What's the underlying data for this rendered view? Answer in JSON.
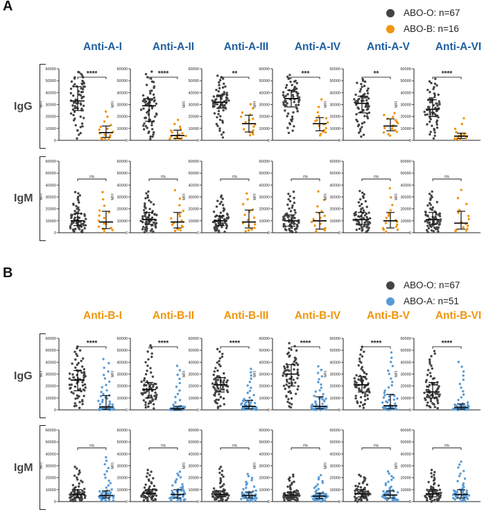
{
  "panels": [
    {
      "letter": "A",
      "legend": [
        {
          "label": "ABO-O: n=67",
          "color": "#444444"
        },
        {
          "label": "ABO-B: n=16",
          "color": "#F0950C"
        }
      ],
      "title_color": "#1F5F9E",
      "second_color": "#F0950C",
      "antigens": [
        "Anti-A-I",
        "Anti-A-II",
        "Anti-A-III",
        "Anti-A-IV",
        "Anti-A-V",
        "Anti-A-VI"
      ],
      "rows": [
        "IgG",
        "IgM"
      ]
    },
    {
      "letter": "B",
      "legend": [
        {
          "label": "ABO-O: n=67",
          "color": "#444444"
        },
        {
          "label": "ABO-A: n=51",
          "color": "#5A9BD5"
        }
      ],
      "title_color": "#F0950C",
      "second_color": "#5A9BD5",
      "antigens": [
        "Anti-B-I",
        "Anti-B-II",
        "Anti-B-III",
        "Anti-B-IV",
        "Anti-B-V",
        "Anti-B-VI"
      ],
      "rows": [
        "IgG",
        "IgM"
      ]
    }
  ],
  "chart_data": [
    {
      "type": "scatter",
      "panel": "A",
      "ylabel": "MFI",
      "ylim": [
        0,
        60000
      ],
      "yticks": [
        "0",
        "10000",
        "20000",
        "30000",
        "40000",
        "50000",
        "60000"
      ],
      "groups": [
        "ABO-O",
        "ABO-B"
      ],
      "group_n": [
        67,
        16
      ],
      "subplots": [
        {
          "antigen": "Anti-A-I",
          "isotype": "IgG",
          "significance": "****",
          "median": [
            33000,
            6500
          ],
          "iqr": [
            [
              25000,
              45000
            ],
            [
              2500,
              12000
            ]
          ],
          "range": [
            [
              500,
              58000
            ],
            [
              500,
              27000
            ]
          ]
        },
        {
          "antigen": "Anti-A-II",
          "isotype": "IgG",
          "significance": "****",
          "median": [
            29000,
            4000
          ],
          "iqr": [
            [
              16000,
              35000
            ],
            [
              1500,
              8500
            ]
          ],
          "range": [
            [
              500,
              58000
            ],
            [
              500,
              19000
            ]
          ]
        },
        {
          "antigen": "Anti-A-III",
          "isotype": "IgG",
          "significance": "**",
          "median": [
            32000,
            14000
          ],
          "iqr": [
            [
              27000,
              38000
            ],
            [
              7000,
              21000
            ]
          ],
          "range": [
            [
              1000,
              55000
            ],
            [
              3000,
              32000
            ]
          ]
        },
        {
          "antigen": "Anti-A-IV",
          "isotype": "IgG",
          "significance": "***",
          "median": [
            35000,
            14000
          ],
          "iqr": [
            [
              28000,
              42000
            ],
            [
              8000,
              19000
            ]
          ],
          "range": [
            [
              5000,
              55000
            ],
            [
              3000,
              37000
            ]
          ]
        },
        {
          "antigen": "Anti-A-V",
          "isotype": "IgG",
          "significance": "**",
          "median": [
            31000,
            12000
          ],
          "iqr": [
            [
              23000,
              37000
            ],
            [
              8000,
              18000
            ]
          ],
          "range": [
            [
              2000,
              52000
            ],
            [
              3000,
              24000
            ]
          ]
        },
        {
          "antigen": "Anti-A-VI",
          "isotype": "IgG",
          "significance": "****",
          "median": [
            26000,
            3500
          ],
          "iqr": [
            [
              20000,
              34000
            ],
            [
              1500,
              6000
            ]
          ],
          "range": [
            [
              500,
              52000
            ],
            [
              500,
              21000
            ]
          ]
        },
        {
          "antigen": "Anti-A-I",
          "isotype": "IgM",
          "significance": "ns",
          "median": [
            10000,
            9000
          ],
          "iqr": [
            [
              6000,
              16000
            ],
            [
              3500,
              18000
            ]
          ],
          "range": [
            [
              0,
              35000
            ],
            [
              500,
              37000
            ]
          ]
        },
        {
          "antigen": "Anti-A-II",
          "isotype": "IgM",
          "significance": "ns",
          "median": [
            11000,
            9000
          ],
          "iqr": [
            [
              7000,
              17000
            ],
            [
              4000,
              17000
            ]
          ],
          "range": [
            [
              0,
              35000
            ],
            [
              500,
              40000
            ]
          ]
        },
        {
          "antigen": "Anti-A-III",
          "isotype": "IgM",
          "significance": "ns",
          "median": [
            10000,
            9000
          ],
          "iqr": [
            [
              6000,
              14000
            ],
            [
              4000,
              19000
            ]
          ],
          "range": [
            [
              0,
              32000
            ],
            [
              500,
              36000
            ]
          ]
        },
        {
          "antigen": "Anti-A-IV",
          "isotype": "IgM",
          "significance": "ns",
          "median": [
            10000,
            10000
          ],
          "iqr": [
            [
              5500,
              15000
            ],
            [
              3000,
              17000
            ]
          ],
          "range": [
            [
              0,
              35000
            ],
            [
              500,
              38000
            ]
          ]
        },
        {
          "antigen": "Anti-A-V",
          "isotype": "IgM",
          "significance": "ns",
          "median": [
            11000,
            10000
          ],
          "iqr": [
            [
              7000,
              17000
            ],
            [
              4000,
              17000
            ]
          ],
          "range": [
            [
              0,
              36000
            ],
            [
              500,
              41000
            ]
          ]
        },
        {
          "antigen": "Anti-A-VI",
          "isotype": "IgM",
          "significance": "ns",
          "median": [
            11000,
            8000
          ],
          "iqr": [
            [
              7000,
              17000
            ],
            [
              3000,
              18000
            ]
          ],
          "range": [
            [
              0,
              35000
            ],
            [
              500,
              40000
            ]
          ]
        }
      ]
    },
    {
      "type": "scatter",
      "panel": "B",
      "ylabel": "MFI",
      "ylim": [
        0,
        60000
      ],
      "yticks": [
        "0",
        "10000",
        "20000",
        "30000",
        "40000",
        "50000",
        "60000"
      ],
      "groups": [
        "ABO-O",
        "ABO-A"
      ],
      "group_n": [
        67,
        51
      ],
      "subplots": [
        {
          "antigen": "Anti-B-I",
          "isotype": "IgG",
          "significance": "****",
          "median": [
            25000,
            2500
          ],
          "iqr": [
            [
              16000,
              33000
            ],
            [
              500,
              12000
            ]
          ],
          "range": [
            [
              500,
              54000
            ],
            [
              0,
              44000
            ]
          ]
        },
        {
          "antigen": "Anti-B-II",
          "isotype": "IgG",
          "significance": "****",
          "median": [
            17000,
            1000
          ],
          "iqr": [
            [
              10000,
              23000
            ],
            [
              0,
              3000
            ]
          ],
          "range": [
            [
              500,
              56000
            ],
            [
              0,
              39000
            ]
          ]
        },
        {
          "antigen": "Anti-B-III",
          "isotype": "IgG",
          "significance": "****",
          "median": [
            21000,
            3000
          ],
          "iqr": [
            [
              15000,
              27000
            ],
            [
              1000,
              8000
            ]
          ],
          "range": [
            [
              500,
              52000
            ],
            [
              0,
              36000
            ]
          ]
        },
        {
          "antigen": "Anti-B-IV",
          "isotype": "IgG",
          "significance": "****",
          "median": [
            30000,
            3000
          ],
          "iqr": [
            [
              20000,
              38000
            ],
            [
              1000,
              11000
            ]
          ],
          "range": [
            [
              500,
              56000
            ],
            [
              0,
              38000
            ]
          ]
        },
        {
          "antigen": "Anti-B-V",
          "isotype": "IgG",
          "significance": "****",
          "median": [
            21000,
            3500
          ],
          "iqr": [
            [
              15000,
              28000
            ],
            [
              1000,
              13000
            ]
          ],
          "range": [
            [
              500,
              54000
            ],
            [
              0,
              50000
            ]
          ]
        },
        {
          "antigen": "Anti-B-VI",
          "isotype": "IgG",
          "significance": "****",
          "median": [
            15000,
            2000
          ],
          "iqr": [
            [
              10000,
              23000
            ],
            [
              500,
              5000
            ]
          ],
          "range": [
            [
              500,
              50000
            ],
            [
              0,
              42000
            ]
          ]
        },
        {
          "antigen": "Anti-B-I",
          "isotype": "IgM",
          "significance": "ns",
          "median": [
            6000,
            5000
          ],
          "iqr": [
            [
              3500,
              10000
            ],
            [
              3000,
              9000
            ]
          ],
          "range": [
            [
              0,
              30000
            ],
            [
              0,
              39000
            ]
          ]
        },
        {
          "antigen": "Anti-B-II",
          "isotype": "IgM",
          "significance": "ns",
          "median": [
            7000,
            6000
          ],
          "iqr": [
            [
              4000,
              10000
            ],
            [
              3000,
              10000
            ]
          ],
          "range": [
            [
              0,
              27000
            ],
            [
              0,
              26000
            ]
          ]
        },
        {
          "antigen": "Anti-B-III",
          "isotype": "IgM",
          "significance": "ns",
          "median": [
            6000,
            5000
          ],
          "iqr": [
            [
              4000,
              9000
            ],
            [
              3000,
              8000
            ]
          ],
          "range": [
            [
              0,
              30000
            ],
            [
              0,
              24000
            ]
          ]
        },
        {
          "antigen": "Anti-B-IV",
          "isotype": "IgM",
          "significance": "ns",
          "median": [
            5500,
            4500
          ],
          "iqr": [
            [
              3500,
              8000
            ],
            [
              2500,
              7000
            ]
          ],
          "range": [
            [
              0,
              23000
            ],
            [
              0,
              23000
            ]
          ]
        },
        {
          "antigen": "Anti-B-V",
          "isotype": "IgM",
          "significance": "ns",
          "median": [
            6500,
            5500
          ],
          "iqr": [
            [
              4000,
              10000
            ],
            [
              3000,
              9000
            ]
          ],
          "range": [
            [
              0,
              23000
            ],
            [
              0,
              26000
            ]
          ]
        },
        {
          "antigen": "Anti-B-VI",
          "isotype": "IgM",
          "significance": "ns",
          "median": [
            6500,
            6000
          ],
          "iqr": [
            [
              4000,
              10000
            ],
            [
              3000,
              10000
            ]
          ],
          "range": [
            [
              0,
              27000
            ],
            [
              0,
              35000
            ]
          ]
        }
      ]
    }
  ]
}
